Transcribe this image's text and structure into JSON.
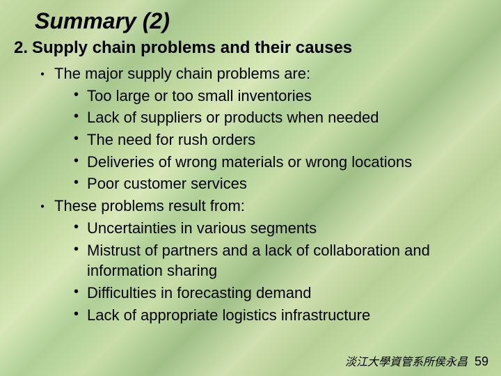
{
  "title": "Summary (2)",
  "subtitle_num": "2.",
  "subtitle": "Supply chain problems and their causes",
  "items": [
    {
      "text": "The major supply chain problems are:",
      "children": [
        "Too large or too small inventories",
        "Lack of suppliers or products when needed",
        "The need for rush orders",
        "Deliveries of wrong materials or wrong locations",
        "Poor customer services"
      ]
    },
    {
      "text": "These problems result from:",
      "children": [
        "Uncertainties in various segments",
        "Mistrust of partners and a lack of collaboration and information sharing",
        "Difficulties in forecasting demand",
        "Lack of appropriate logistics infrastructure"
      ]
    }
  ],
  "footer_text": "淡江大學資管系所侯永昌",
  "footer_num": "59",
  "colors": {
    "text": "#000000",
    "bg_light": "#d0e0b0",
    "bg_dark": "#a0c088"
  },
  "fonts": {
    "title_size": 32,
    "subtitle_size": 24,
    "body_size": 22,
    "footer_size": 16
  }
}
